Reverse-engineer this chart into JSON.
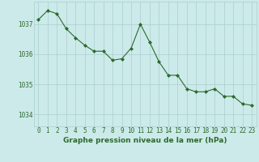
{
  "x": [
    0,
    1,
    2,
    3,
    4,
    5,
    6,
    7,
    8,
    9,
    10,
    11,
    12,
    13,
    14,
    15,
    16,
    17,
    18,
    19,
    20,
    21,
    22,
    23
  ],
  "y": [
    1037.15,
    1037.45,
    1037.35,
    1036.85,
    1036.55,
    1036.3,
    1036.1,
    1036.1,
    1035.8,
    1035.85,
    1036.2,
    1037.0,
    1036.4,
    1035.75,
    1035.3,
    1035.3,
    1034.85,
    1034.75,
    1034.75,
    1034.85,
    1034.6,
    1034.6,
    1034.35,
    1034.3
  ],
  "line_color": "#2d6a2d",
  "marker": "D",
  "markersize": 2.0,
  "linewidth": 0.8,
  "bg_color": "#cceaea",
  "grid_color": "#aacece",
  "xlabel": "Graphe pression niveau de la mer (hPa)",
  "xlabel_fontsize": 6.5,
  "tick_fontsize": 5.5,
  "ytick_labels": [
    "1034",
    "1035",
    "1036",
    "1037"
  ],
  "ytick_values": [
    1034,
    1035,
    1036,
    1037
  ],
  "ylim": [
    1033.6,
    1037.75
  ],
  "xlim": [
    -0.5,
    23.5
  ]
}
